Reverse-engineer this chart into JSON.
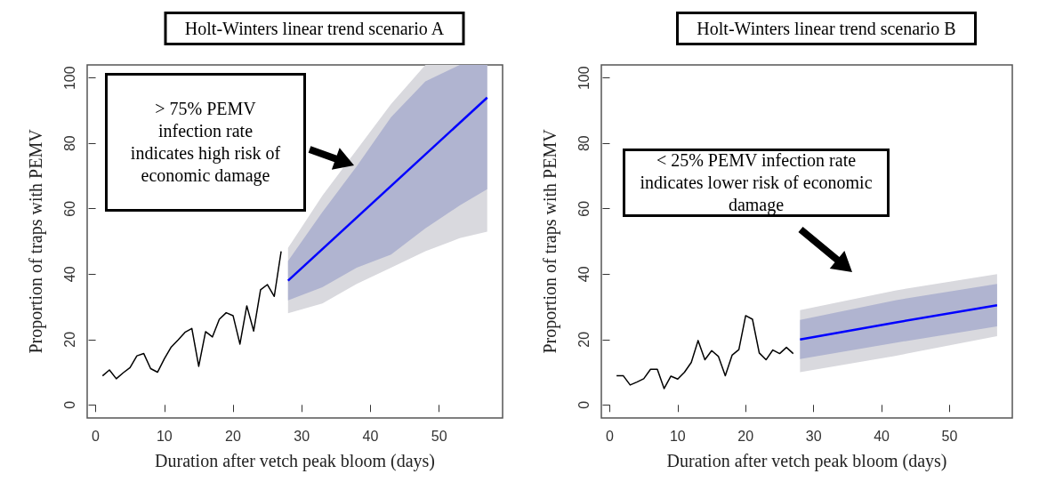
{
  "chart_data": [
    {
      "type": "line",
      "title": "Holt-Winters linear trend scenario A",
      "xlabel": "Duration after vetch peak bloom (days)",
      "ylabel": "Proportion of traps with PEMV",
      "annotations": [
        "> 75% PEMV infection rate indicates high risk of economic damage"
      ],
      "xlim": [
        -1.24,
        59.24
      ],
      "xticks": [
        0,
        10,
        20,
        30,
        40,
        50
      ],
      "ylim": [
        -4,
        104
      ],
      "yticks": [
        0,
        20,
        40,
        60,
        80,
        100
      ],
      "grid": false,
      "marker": "none",
      "line_style": "solid",
      "series": [
        {
          "type": "area",
          "color": "#d9d9de",
          "x": [
            28,
            33,
            38,
            43,
            48,
            53,
            57
          ],
          "values": [
            null,
            null,
            null,
            null,
            null,
            null,
            null
          ],
          "lower": [
            28,
            31,
            37,
            42,
            47,
            51,
            53
          ],
          "upper": [
            48,
            64,
            78,
            92,
            104,
            104,
            104
          ]
        },
        {
          "type": "area",
          "color": "#b0b4d0",
          "x": [
            28,
            33,
            38,
            43,
            48,
            53,
            57
          ],
          "values": [
            null,
            null,
            null,
            null,
            null,
            null,
            null
          ],
          "lower": [
            32,
            36,
            42,
            46,
            54,
            61,
            66
          ],
          "upper": [
            44,
            59,
            73,
            88,
            99,
            104,
            104
          ]
        },
        {
          "color": "#000000",
          "x": [
            1,
            2,
            3,
            4,
            5,
            6,
            7,
            8,
            9,
            10,
            11,
            12,
            13,
            14,
            15,
            16,
            17,
            18,
            19,
            20,
            21,
            22,
            23,
            24,
            25,
            26,
            27
          ],
          "values": [
            8.9,
            10.7,
            8.0,
            9.8,
            11.4,
            15,
            15.7,
            11.1,
            10,
            14.1,
            17.7,
            19.9,
            22.2,
            23.4,
            11.8,
            22.4,
            20.8,
            26.2,
            28.2,
            27.3,
            18.6,
            30.3,
            22.6,
            35.2,
            36.8,
            33.2,
            47
          ]
        },
        {
          "color": "#0000ff",
          "x": [
            28,
            57
          ],
          "values": [
            38,
            94
          ]
        }
      ]
    },
    {
      "type": "line",
      "title": "Holt-Winters linear trend scenario B",
      "xlabel": "Duration after vetch peak bloom (days)",
      "ylabel": "Proportion of traps with PEMV",
      "annotations": [
        "< 25% PEMV infection rate indicates lower risk of economic damage"
      ],
      "xlim": [
        -1.24,
        59.24
      ],
      "xticks": [
        0,
        10,
        20,
        30,
        40,
        50
      ],
      "ylim": [
        -4,
        104
      ],
      "yticks": [
        0,
        20,
        40,
        60,
        80,
        100
      ],
      "grid": false,
      "marker": "none",
      "line_style": "solid",
      "series": [
        {
          "type": "area",
          "color": "#d9d9de",
          "x": [
            28,
            42,
            57
          ],
          "values": [
            null,
            null,
            null
          ],
          "lower": [
            10,
            15,
            21
          ],
          "upper": [
            29,
            35,
            40
          ]
        },
        {
          "type": "area",
          "color": "#b0b4d0",
          "x": [
            28,
            42,
            57
          ],
          "values": [
            null,
            null,
            null
          ],
          "lower": [
            14,
            19,
            24
          ],
          "upper": [
            26,
            32,
            37
          ]
        },
        {
          "color": "#000000",
          "x": [
            1,
            2,
            3,
            4,
            5,
            6,
            7,
            8,
            9,
            10,
            11,
            12,
            13,
            14,
            15,
            16,
            17,
            18,
            19,
            20,
            21,
            22,
            23,
            24,
            25,
            26,
            27
          ],
          "values": [
            8.9,
            8.9,
            6.1,
            7.0,
            8.0,
            10.9,
            10.9,
            5.0,
            8.8,
            7.9,
            10,
            13,
            19.7,
            13.8,
            16.6,
            14.8,
            8.9,
            15.2,
            16.9,
            27.3,
            26.2,
            15.9,
            13.8,
            16.8,
            15.7,
            17.6,
            15.7
          ]
        },
        {
          "color": "#0000ff",
          "x": [
            28,
            42,
            57
          ],
          "values": [
            20,
            25.2,
            30.5
          ]
        }
      ]
    }
  ]
}
